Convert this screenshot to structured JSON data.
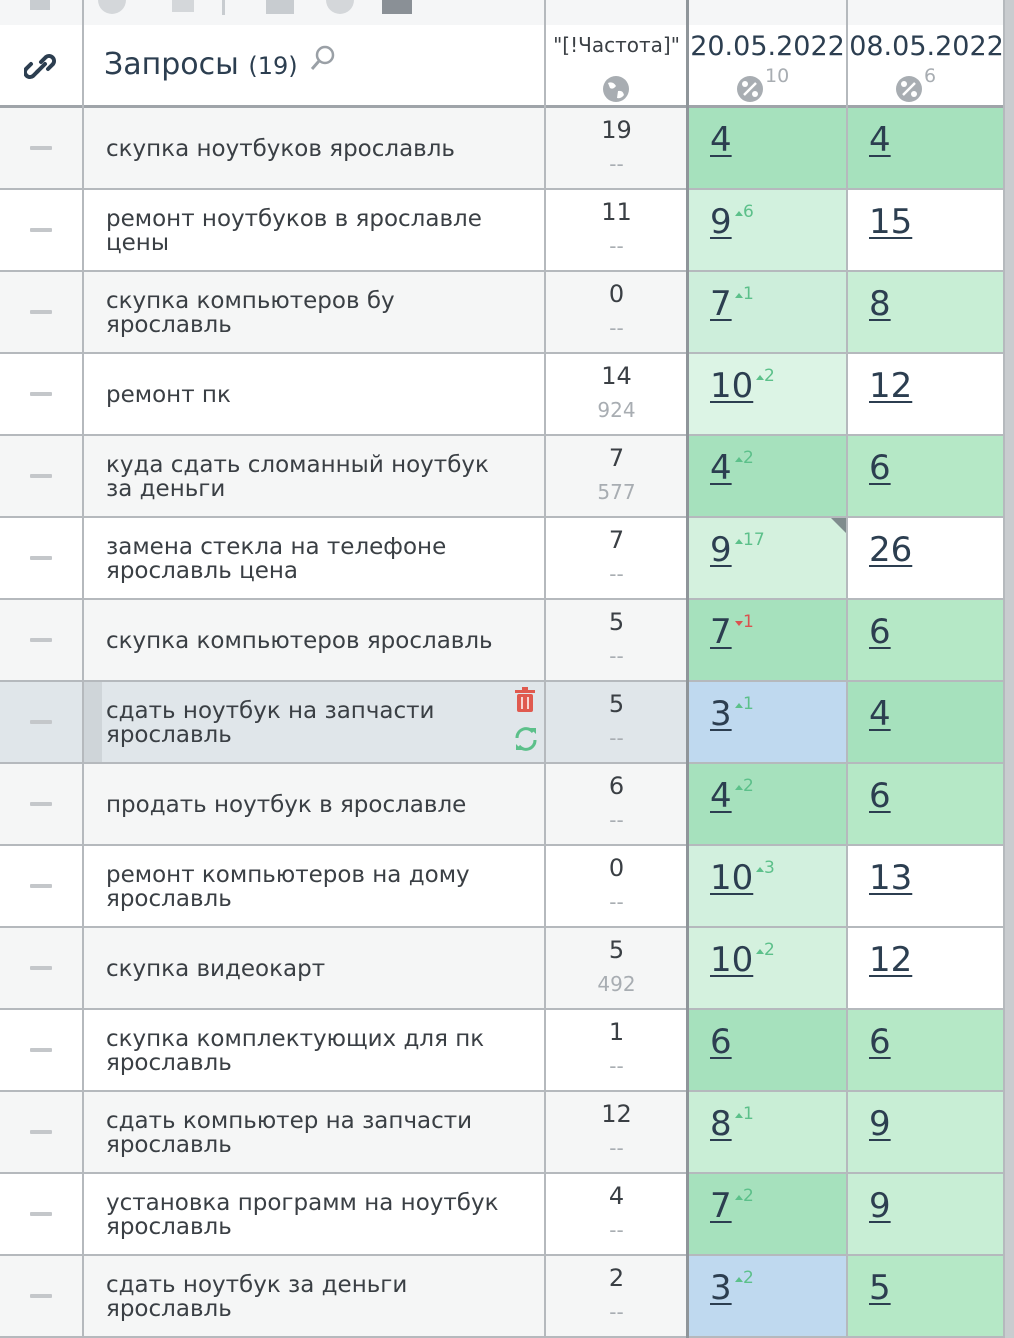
{
  "header": {
    "title": "Запросы",
    "count": "(19)",
    "freq": "\"[!Частота]\"",
    "dates": [
      {
        "date": "20.05.2022",
        "pct": "10"
      },
      {
        "date": "08.05.2022",
        "pct": "6"
      }
    ]
  },
  "rows": [
    {
      "query": "скупка ноутбуков ярославль",
      "freq": "19",
      "freq2": "--",
      "pos1": "4",
      "bg1": "#a6e1bd",
      "pos2": "4",
      "bg2": "#a6e1bd"
    },
    {
      "query": "ремонт ноутбуков в ярославле цены",
      "freq": "11",
      "freq2": "--",
      "pos1": "9",
      "delta": {
        "dir": "up",
        "value": "6"
      },
      "bg1": "#d2f1de",
      "pos2": "15",
      "bg2": "#ffffff"
    },
    {
      "query": "скупка компьютеров бу ярославль",
      "freq": "0",
      "freq2": "--",
      "pos1": "7",
      "delta": {
        "dir": "up",
        "value": "1"
      },
      "bg1": "#cdeedb",
      "pos2": "8",
      "bg2": "#c8eed5"
    },
    {
      "query": "ремонт пк",
      "freq": "14",
      "freq2": "924",
      "pos1": "10",
      "delta": {
        "dir": "up",
        "value": "2"
      },
      "bg1": "#dcf4e5",
      "pos2": "12",
      "bg2": "#ffffff"
    },
    {
      "query": "куда сдать сломанный ноутбук за деньги",
      "freq": "7",
      "freq2": "577",
      "pos1": "4",
      "delta": {
        "dir": "up",
        "value": "2"
      },
      "bg1": "#a6e1bd",
      "pos2": "6",
      "bg2": "#b5e8c6"
    },
    {
      "query": "замена стекла на телефоне ярославль цена",
      "freq": "7",
      "freq2": "--",
      "pos1": "9",
      "delta": {
        "dir": "up",
        "value": "17"
      },
      "bg1": "#d4f1de",
      "pos2": "26",
      "bg2": "#ffffff"
    },
    {
      "query": "скупка компьютеров ярославль",
      "freq": "5",
      "freq2": "--",
      "pos1": "7",
      "delta": {
        "dir": "down",
        "value": "1"
      },
      "bg1": "#a6e1bd",
      "pos2": "6",
      "bg2": "#b5e8c6"
    },
    {
      "query": "сдать ноутбук на запчасти ярославль",
      "freq": "5",
      "freq2": "--",
      "pos1": "3",
      "delta": {
        "dir": "up",
        "value": "1"
      },
      "bg1": "#bfd9ef",
      "pos2": "4",
      "bg2": "#a6e1bd"
    },
    {
      "query": "продать ноутбук в ярославле",
      "freq": "6",
      "freq2": "--",
      "pos1": "4",
      "delta": {
        "dir": "up",
        "value": "2"
      },
      "bg1": "#a6e1bd",
      "pos2": "6",
      "bg2": "#b5e8c6"
    },
    {
      "query": "ремонт компьютеров на дому ярославль",
      "freq": "0",
      "freq2": "--",
      "pos1": "10",
      "delta": {
        "dir": "up",
        "value": "3"
      },
      "bg1": "#d2f0de",
      "pos2": "13",
      "bg2": "#ffffff"
    },
    {
      "query": "скупка видеокарт",
      "freq": "5",
      "freq2": "492",
      "pos1": "10",
      "delta": {
        "dir": "up",
        "value": "2"
      },
      "bg1": "#d4f1de",
      "pos2": "12",
      "bg2": "#ffffff"
    },
    {
      "query": "скупка комплектующих для пк ярославль",
      "freq": "1",
      "freq2": "--",
      "pos1": "6",
      "bg1": "#a6e1bd",
      "pos2": "6",
      "bg2": "#b5e8c6"
    },
    {
      "query": "сдать компьютер на запчасти ярославль",
      "freq": "12",
      "freq2": "--",
      "pos1": "8",
      "delta": {
        "dir": "up",
        "value": "1"
      },
      "bg1": "#c9eed6",
      "pos2": "9",
      "bg2": "#c8eed5"
    },
    {
      "query": "установка программ на ноутбук ярославль",
      "freq": "4",
      "freq2": "--",
      "pos1": "7",
      "delta": {
        "dir": "up",
        "value": "2"
      },
      "bg1": "#a6e1bd",
      "pos2": "9",
      "bg2": "#c8eed5"
    },
    {
      "query": "сдать ноутбук за деньги ярославль",
      "freq": "2",
      "freq2": "--",
      "pos1": "3",
      "delta": {
        "dir": "up",
        "value": "2"
      },
      "bg1": "#bfd9ef",
      "pos2": "5",
      "bg2": "#b5e8c6"
    }
  ]
}
